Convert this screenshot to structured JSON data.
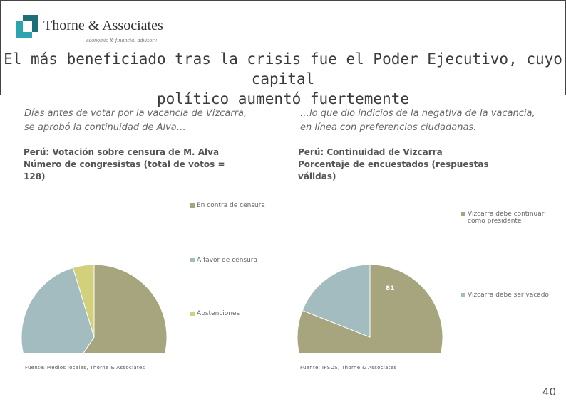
{
  "header": {
    "logo": {
      "name": "Thorne & Associates",
      "tagline": "economic & financial advisory"
    },
    "title_line1": "El más beneficiado tras la crisis fue el Poder Ejecutivo, cuyo capital",
    "title_line2": "político aumentó fuertemente"
  },
  "left": {
    "subtitle_line1": "Días antes de votar por la vacancia de Vizcarra,",
    "subtitle_line2": "se aprobó la continuidad de Alva…",
    "source": "Fuente: Medios locales, Thorne & Associates"
  },
  "right": {
    "subtitle_line1": "…lo que dio indicios de la negativa de la vacancia,",
    "subtitle_line2": "en línea con preferencias ciudadanas.",
    "source": "Fuente: IPSOS, Thorne & Associates"
  },
  "page_number": "40",
  "colors": {
    "olive": "#a6a57e",
    "blue": "#a2bcbf",
    "yellow": "#d2d07a",
    "icon_teal": "#2aa5b0",
    "icon_dark": "#1d6f78"
  },
  "chart_data": [
    {
      "type": "pie",
      "title_line1": "Perú: Votación sobre censura de M. Alva",
      "title_line2": "Número de congresistas (total de votos =",
      "title_line3": "128)",
      "categories": [
        "En contra de censura",
        "A favor de censura",
        "Abstenciones"
      ],
      "values": [
        76,
        46,
        6
      ],
      "colors": [
        "#a6a57e",
        "#a2bcbf",
        "#d2d07a"
      ],
      "legend_position": "right"
    },
    {
      "type": "pie",
      "title_line1": "Perú: Continuidad de Vizcarra",
      "title_line2": "Porcentaje de encuestados (respuestas",
      "title_line3": "válidas)",
      "categories": [
        "Vizcarra debe continuar como presidente",
        "Vizcarra debe ser vacado"
      ],
      "values": [
        81,
        19
      ],
      "colors": [
        "#a6a57e",
        "#a2bcbf"
      ],
      "legend_position": "right"
    }
  ]
}
